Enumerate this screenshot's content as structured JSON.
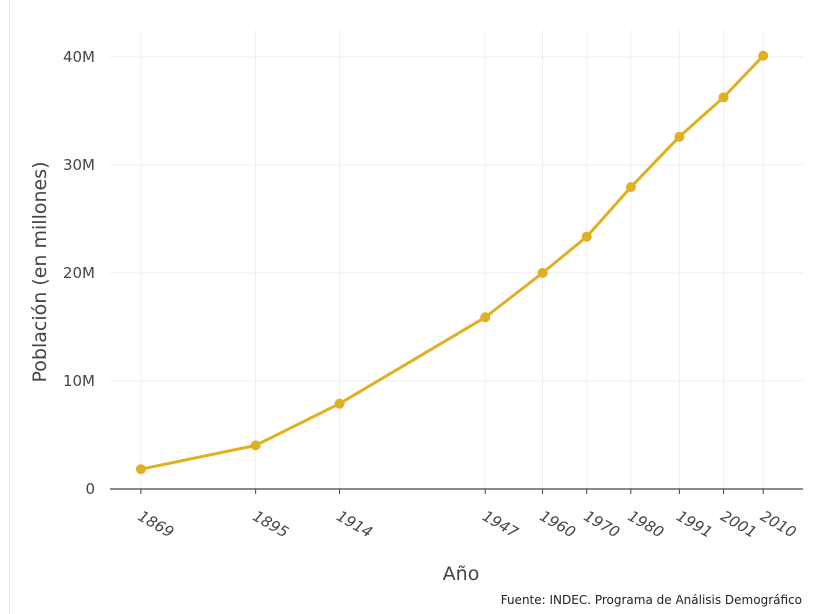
{
  "chart_data": {
    "type": "line",
    "title": "",
    "xlabel": "Año",
    "ylabel": "Población (en millones)",
    "source_note": "Fuente: INDEC. Programa de Análisis Demográfico",
    "x": [
      1869,
      1895,
      1914,
      1947,
      1960,
      1970,
      1980,
      1991,
      2001,
      2010
    ],
    "x_tick_labels": [
      "1869",
      "1895",
      "1914",
      "1947",
      "1960",
      "1970",
      "1980",
      "1991",
      "2001",
      "2010"
    ],
    "series": [
      {
        "values": [
          1830000,
          4040000,
          7900000,
          15900000,
          20010000,
          23360000,
          27950000,
          32620000,
          36260000,
          40120000
        ]
      }
    ],
    "y_tick_values": [
      0,
      10000000,
      20000000,
      30000000,
      40000000
    ],
    "y_tick_labels": [
      "0",
      "10M",
      "20M",
      "30M",
      "40M"
    ],
    "xlim": [
      1862,
      2019
    ],
    "ylim": [
      0,
      42500000
    ],
    "grid": true,
    "colors": {
      "line": "#e0af22",
      "grid": "#eeeeee",
      "axis": "#444444"
    }
  }
}
